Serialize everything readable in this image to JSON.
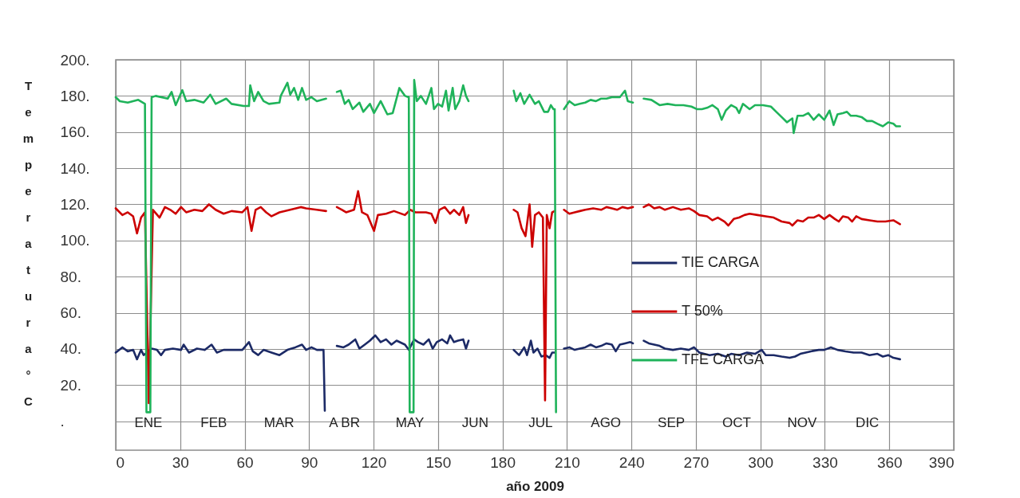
{
  "chart_data": {
    "type": "line",
    "xlabel": "año 2009",
    "ylabel": "Temperatura °C",
    "xlim": [
      0,
      390
    ],
    "xticks": [
      0,
      30,
      60,
      90,
      120,
      150,
      180,
      210,
      240,
      270,
      300,
      330,
      360,
      390
    ],
    "ylim": [
      -16,
      200
    ],
    "yticks": [
      {
        "value": 0,
        "label": "."
      },
      {
        "value": 20,
        "label": "20."
      },
      {
        "value": 40,
        "label": "40."
      },
      {
        "value": 60,
        "label": "60."
      },
      {
        "value": 80,
        "label": "80."
      },
      {
        "value": 100,
        "label": "100."
      },
      {
        "value": 120,
        "label": "120."
      },
      {
        "value": 140,
        "label": "140."
      },
      {
        "value": 160,
        "label": "160."
      },
      {
        "value": 180,
        "label": "180."
      },
      {
        "value": 200,
        "label": "200."
      }
    ],
    "grid": true,
    "legend": "right",
    "marker": "none",
    "line_style": "solid",
    "annotations": [
      "ENE",
      "FEB",
      "MAR",
      "A BR",
      "MAY",
      "JUN",
      "JUL",
      "AGO",
      "SEP",
      "OCT",
      "NOV",
      "DIC"
    ],
    "series": [
      {
        "name": "TIE CARGA",
        "color": "#1c2a66",
        "x": [
          0,
          3.1,
          5.6,
          8.1,
          9.9,
          11.8,
          13,
          16.7,
          19.2,
          21.1,
          22.9,
          26.6,
          30.4,
          31.6,
          34.1,
          37.8,
          41.5,
          44.6,
          47.1,
          50.2,
          53.9,
          58.9,
          62,
          63.8,
          66.3,
          68.8,
          72.5,
          76.2,
          79.9,
          83.6,
          86.7,
          88.6,
          91.1,
          93.6,
          96.7,
          97.3,
          100,
          102.9,
          106,
          108.4,
          111.5,
          113.4,
          115.9,
          118.3,
          120.8,
          123.3,
          125.8,
          128.3,
          130.7,
          134.6,
          136.4,
          138.9,
          140.7,
          143.2,
          145.7,
          147.5,
          149.4,
          151.9,
          154.3,
          155.6,
          157.4,
          159.3,
          161.7,
          163,
          164.2,
          175,
          185.2,
          187.7,
          190.1,
          191.4,
          193.2,
          194.4,
          196.3,
          198.1,
          200,
          201.9,
          203.1,
          204.3,
          206.5,
          208.6,
          211.1,
          213.6,
          216,
          218.5,
          221,
          223.5,
          225.9,
          228.4,
          230.9,
          232.7,
          234.6,
          237,
          239.5,
          240.7,
          243,
          245.7,
          248.1,
          250.6,
          253.1,
          255.6,
          259.3,
          263,
          266.7,
          269.1,
          271.6,
          276.4,
          280.2,
          283.9,
          286.4,
          290.1,
          293.8,
          297.5,
          300.6,
          302.5,
          306.2,
          309.9,
          313.6,
          316.1,
          318.6,
          321.1,
          323.5,
          327.2,
          329.7,
          332.8,
          335.9,
          339.6,
          343.4,
          347.1,
          350.8,
          354.5,
          357,
          359.5,
          361.9,
          365
        ],
        "values": [
          38,
          40.9,
          38.7,
          39.5,
          34.3,
          39.5,
          36.6,
          40.2,
          39.5,
          36.6,
          39.5,
          40.2,
          39.5,
          42.4,
          38,
          40.2,
          39.5,
          42.4,
          38,
          39.5,
          39.5,
          39.5,
          43.8,
          38.7,
          36.6,
          39.5,
          38,
          36.6,
          39.5,
          40.9,
          42.4,
          39.5,
          40.9,
          39.5,
          39.5,
          5.8,
          null,
          41.7,
          40.9,
          42.4,
          45.3,
          40.2,
          42.4,
          44.6,
          47.5,
          43.8,
          45.3,
          42.4,
          44.6,
          42.4,
          39.5,
          45.3,
          43.8,
          42.4,
          45.3,
          40.2,
          43.8,
          45.3,
          43.1,
          47.5,
          43.8,
          44.6,
          45.3,
          40.2,
          44.6,
          null,
          39.5,
          36.6,
          40.9,
          36.6,
          44.6,
          38,
          40.2,
          35.8,
          36.6,
          35.1,
          38,
          38,
          null,
          40.2,
          40.9,
          39.5,
          40.2,
          40.9,
          42.4,
          40.9,
          41.7,
          43.1,
          42.4,
          38.7,
          42.4,
          43.1,
          43.8,
          43.1,
          null,
          44.6,
          43.1,
          42.4,
          41.7,
          40.2,
          39.5,
          40.2,
          39.5,
          40.9,
          38,
          36.6,
          37.3,
          35.8,
          37.3,
          36.6,
          38,
          37.3,
          39.5,
          36.6,
          36.6,
          35.8,
          35.1,
          35.8,
          37.3,
          38,
          38.7,
          39.5,
          39.5,
          40.9,
          39.5,
          38.7,
          38,
          38,
          36.6,
          37.3,
          35.8,
          36.6,
          35.1,
          34.3
        ]
      },
      {
        "name": "T 50%",
        "color": "#cc0000",
        "x": [
          0,
          3.1,
          5.6,
          8.1,
          9.9,
          11.8,
          13.6,
          15.4,
          17.3,
          20.4,
          22.9,
          25.4,
          27.9,
          30.4,
          32.8,
          36.6,
          40.3,
          43.4,
          46.5,
          50.2,
          53.9,
          58.9,
          61.3,
          63.2,
          65.1,
          67.5,
          70,
          72.5,
          76.2,
          81.2,
          86.1,
          88.6,
          93.6,
          97.9,
          100,
          102.9,
          105.3,
          107.2,
          110.9,
          112.8,
          114.6,
          117.1,
          120.2,
          122,
          125.8,
          129.5,
          134.6,
          137,
          139.5,
          142,
          144.4,
          146.9,
          148.8,
          150.6,
          153.1,
          155.6,
          157.4,
          159.9,
          161.7,
          163,
          164.2,
          175,
          185.2,
          187,
          188.9,
          190.7,
          192.6,
          193.8,
          195.1,
          196.9,
          198.8,
          199.8,
          200.6,
          201.9,
          203.1,
          204.3,
          206.5,
          208.6,
          211.1,
          213.6,
          216,
          218.5,
          222.2,
          225.9,
          228.4,
          230.9,
          233.3,
          235.8,
          238.3,
          240.7,
          243,
          245.7,
          248.1,
          250.6,
          253.1,
          255.6,
          259.3,
          263,
          266.7,
          269.1,
          271.6,
          275.2,
          277.7,
          280.2,
          283.3,
          285.1,
          287.6,
          290.1,
          292.6,
          295,
          298.7,
          302.5,
          306.2,
          309.9,
          313.6,
          314.9,
          317.3,
          319.8,
          322.3,
          324.8,
          327.2,
          329.7,
          332.2,
          334.7,
          336.5,
          338.4,
          340.9,
          342.7,
          344.6,
          347.1,
          350.8,
          354.5,
          358.2,
          361.9,
          365
        ],
        "values": [
          117.8,
          114.1,
          115.6,
          113.4,
          103.9,
          112.7,
          115.6,
          10,
          117,
          112.7,
          118.5,
          117,
          114.8,
          118.5,
          115.6,
          117,
          116.3,
          120,
          117,
          114.8,
          116.3,
          115.6,
          118.5,
          105.3,
          117,
          118.5,
          115.6,
          113.4,
          115.6,
          117,
          118.5,
          117.8,
          117,
          116.3,
          null,
          118.5,
          117,
          115.6,
          117,
          127.3,
          115.6,
          114.1,
          105.3,
          114.1,
          114.8,
          116.3,
          114.1,
          117,
          115.6,
          115.6,
          115.6,
          114.8,
          109.7,
          117,
          118.5,
          114.8,
          117,
          114.1,
          118.5,
          109.7,
          114.1,
          null,
          117,
          115.6,
          106.8,
          102.4,
          120,
          96.5,
          114.1,
          115.6,
          112.7,
          11.6,
          114.1,
          106.8,
          115.6,
          116.3,
          null,
          117,
          114.8,
          115.6,
          116.3,
          117,
          117.8,
          117,
          118.5,
          117.8,
          117,
          118.5,
          117.8,
          118.5,
          null,
          118.5,
          120,
          117.8,
          118.5,
          117,
          118.5,
          117,
          117.8,
          116.3,
          114.1,
          113.4,
          111.2,
          112.7,
          110.5,
          108.3,
          111.9,
          112.7,
          114.1,
          114.8,
          114.1,
          113.4,
          112.7,
          110.5,
          109.7,
          108.3,
          111.2,
          110.5,
          112.7,
          112.7,
          114.1,
          111.9,
          114.1,
          111.9,
          110.5,
          113.4,
          112.7,
          110.5,
          113.4,
          111.9,
          111.2,
          110.5,
          110.5,
          111.2,
          109
        ]
      },
      {
        "name": "TFE CARGA",
        "color": "#1fb35a",
        "x": [
          0,
          1.9,
          5.6,
          10.5,
          13.6,
          14.3,
          16.1,
          16.7,
          18.6,
          24.2,
          26,
          27.9,
          31,
          32.8,
          36.6,
          40.9,
          44,
          46.5,
          51.4,
          53.9,
          59.5,
          62,
          62.6,
          64.4,
          66.3,
          68.8,
          71.3,
          76.2,
          76.8,
          79.9,
          81.2,
          83,
          84.9,
          86.7,
          88.6,
          91.1,
          93.6,
          97.9,
          100,
          102.9,
          104.7,
          106.6,
          108.4,
          110.3,
          113.4,
          115.2,
          118.3,
          120.2,
          123.3,
          126.4,
          128.9,
          132,
          134.6,
          136.4,
          136.8,
          138.6,
          138.9,
          140.1,
          142,
          144.4,
          146.9,
          148.1,
          150,
          151.9,
          153.7,
          154.9,
          156.8,
          158,
          159.9,
          161.7,
          163,
          164.2,
          175,
          185.2,
          186.4,
          188.3,
          190.1,
          192.6,
          195.1,
          196.9,
          199.4,
          201.2,
          202.5,
          203.7,
          204.3,
          204.9,
          206.5,
          208.6,
          211.1,
          213.6,
          216,
          218.5,
          221,
          223.5,
          225.9,
          228.4,
          230.9,
          234.6,
          237,
          238.3,
          240.7,
          243,
          245.7,
          249.3,
          253.1,
          256.8,
          260.5,
          264.2,
          267.9,
          270.4,
          272.8,
          275.2,
          277.7,
          280.2,
          282,
          283.9,
          286.4,
          288.8,
          290.1,
          291.9,
          295,
          297.5,
          301.2,
          304.9,
          307.4,
          309.9,
          312.4,
          314.9,
          315.5,
          317.3,
          319.8,
          322.3,
          324.8,
          327.2,
          329.7,
          332.2,
          334.1,
          335.9,
          338.4,
          340.3,
          342.1,
          344.6,
          347.1,
          349.6,
          352,
          354.5,
          357,
          359.5,
          361.9,
          363.2,
          365
        ],
        "values": [
          179.3,
          177.1,
          176.3,
          177.8,
          175.6,
          5,
          5,
          179.3,
          180,
          178.5,
          182.2,
          174.9,
          183.2,
          177.1,
          177.8,
          176.3,
          180.7,
          175.6,
          178.5,
          175.6,
          174.4,
          174.4,
          185.9,
          177.1,
          182.2,
          177.1,
          175.6,
          176.3,
          180,
          187.3,
          180.7,
          184.4,
          177.8,
          184.4,
          177.8,
          179.3,
          177.1,
          178.5,
          null,
          182.2,
          182.9,
          175.6,
          177.8,
          172.7,
          176.3,
          171.2,
          175.6,
          170.5,
          177.1,
          169.8,
          170.5,
          184.4,
          180,
          179.3,
          5,
          5,
          188.8,
          177.1,
          180,
          175.6,
          184.4,
          172.7,
          175.6,
          174.1,
          182.9,
          171.9,
          184.4,
          172.7,
          177.1,
          185.9,
          180,
          177.1,
          null,
          182.9,
          177.1,
          181.5,
          175.6,
          180.7,
          175.6,
          177.1,
          171.2,
          171.2,
          174.9,
          172.7,
          172.7,
          5,
          null,
          172.7,
          177.1,
          174.9,
          175.6,
          176.3,
          177.8,
          177.1,
          178.5,
          178.5,
          179.3,
          179.3,
          182.9,
          177.1,
          176.3,
          null,
          178.5,
          177.8,
          174.9,
          175.6,
          174.9,
          174.9,
          174.1,
          172.7,
          172.7,
          173.4,
          174.9,
          172.7,
          166.8,
          171.9,
          174.9,
          173.4,
          170.5,
          175.6,
          172.7,
          174.9,
          174.9,
          174.1,
          171.2,
          168.3,
          165.4,
          167.6,
          159.5,
          169,
          169,
          170.5,
          166.8,
          169.8,
          166.8,
          171.9,
          163.9,
          169.8,
          170.5,
          171.2,
          169,
          169,
          168.3,
          166.1,
          166.1,
          164.6,
          163.2,
          165.4,
          164.6,
          163.2,
          163.2
        ]
      }
    ]
  }
}
